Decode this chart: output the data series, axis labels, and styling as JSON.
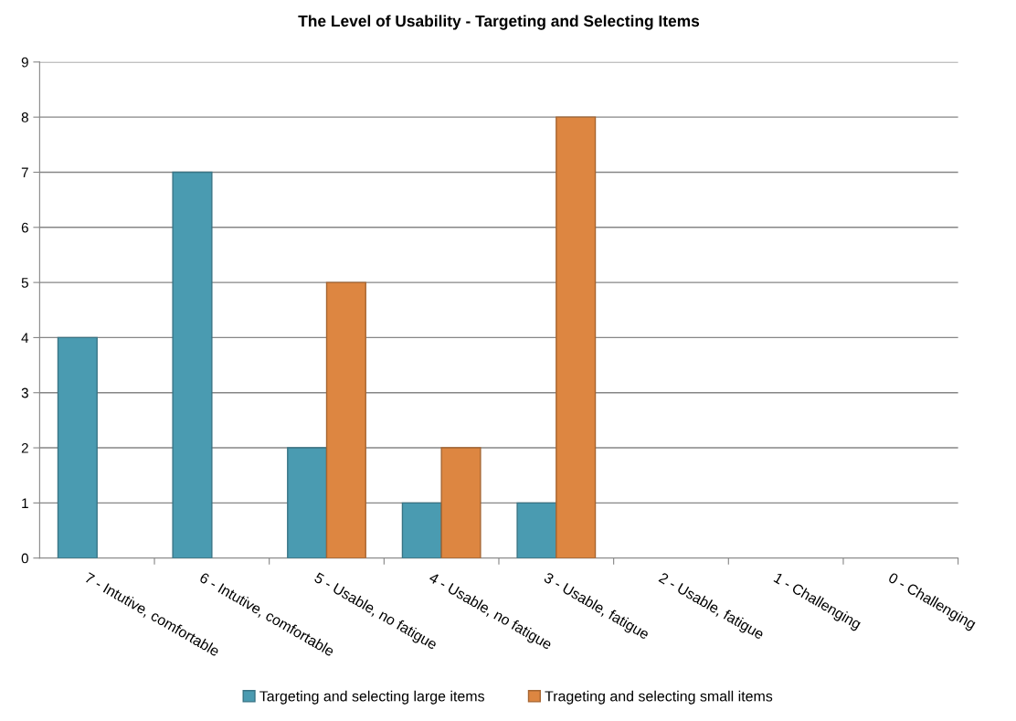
{
  "chart_data": {
    "type": "bar",
    "title": "The Level of Usability - Targeting and Selecting Items",
    "categories": [
      "7 - Intutive, comfortable",
      "6 - Intutive, comfortable",
      "5 - Usable, no fatigue",
      "4 - Usable, no fatigue",
      "3 - Usable, fatigue",
      "2 - Usable, fatigue",
      "1 - Challenging",
      "0 - Challenging"
    ],
    "series": [
      {
        "name": "Targeting and selecting large items",
        "color": "#4a9bb1",
        "values": [
          4,
          7,
          2,
          1,
          1,
          0,
          0,
          0
        ]
      },
      {
        "name": "Trageting and selecting small items",
        "color": "#dd8641",
        "values": [
          0,
          0,
          5,
          2,
          8,
          0,
          0,
          0
        ]
      }
    ],
    "ylim": [
      0,
      9
    ],
    "yticks": [
      0,
      1,
      2,
      3,
      4,
      5,
      6,
      7,
      8,
      9
    ],
    "grid": "y",
    "legend": "bottom"
  }
}
